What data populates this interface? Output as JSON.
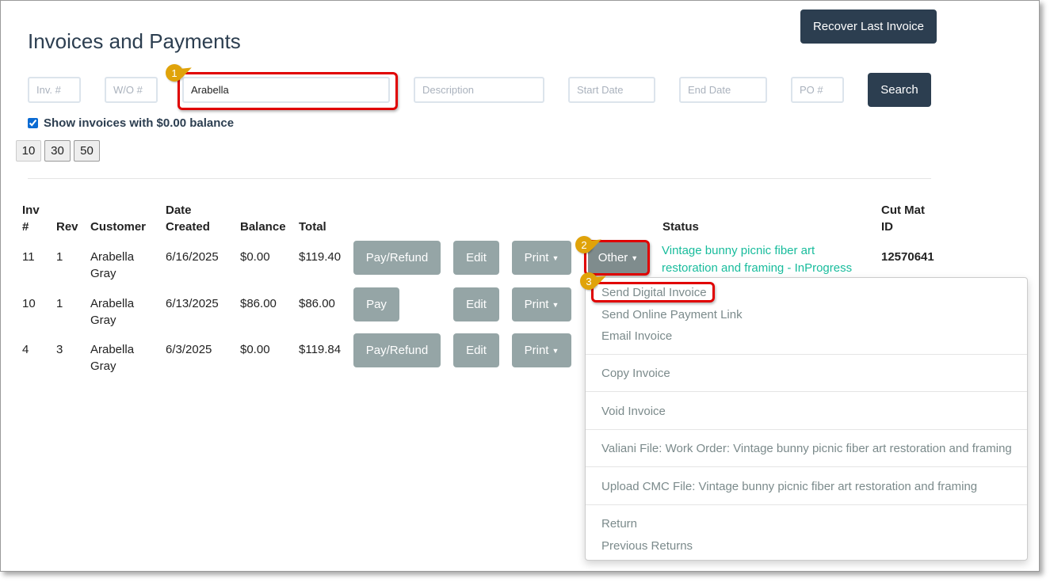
{
  "page": {
    "title": "Invoices and Payments",
    "recover_label": "Recover Last Invoice"
  },
  "filters": {
    "inv_placeholder": "Inv. #",
    "wo_placeholder": "W/O #",
    "customer_value": "Arabella",
    "description_placeholder": "Description",
    "start_placeholder": "Start Date",
    "end_placeholder": "End Date",
    "po_placeholder": "PO #",
    "search_label": "Search",
    "show_zero_label": "Show invoices with $0.00 balance",
    "show_zero_checked": true
  },
  "page_sizes": [
    "10",
    "30",
    "50"
  ],
  "table": {
    "headers": {
      "inv": "Inv #",
      "rev": "Rev",
      "customer": "Customer",
      "date": "Date Created",
      "balance": "Balance",
      "total": "Total",
      "status": "Status",
      "cutmat": "Cut Mat ID"
    },
    "rows": [
      {
        "inv": "11",
        "rev": "1",
        "customer": "Arabella Gray",
        "date": "6/16/2025",
        "balance": "$0.00",
        "total": "$119.40",
        "pay": "Pay/Refund",
        "edit": "Edit",
        "print": "Print",
        "other": "Other",
        "status": "Vintage bunny picnic fiber art restoration and framing - InProgress",
        "cutmat": "12570641"
      },
      {
        "inv": "10",
        "rev": "1",
        "customer": "Arabella Gray",
        "date": "6/13/2025",
        "balance": "$86.00",
        "total": "$86.00",
        "pay": "Pay",
        "edit": "Edit",
        "print": "Print"
      },
      {
        "inv": "4",
        "rev": "3",
        "customer": "Arabella Gray",
        "date": "6/3/2025",
        "balance": "$0.00",
        "total": "$119.84",
        "pay": "Pay/Refund",
        "edit": "Edit",
        "print": "Print"
      }
    ]
  },
  "menu": {
    "items": [
      "Send Digital Invoice",
      "Send Online Payment Link",
      "Email Invoice",
      "Copy Invoice",
      "Void Invoice",
      "Valiani File: Work Order: Vintage bunny picnic fiber art restoration and framing",
      "Upload CMC File: Vintage bunny picnic fiber art restoration and framing",
      "Return",
      "Previous Returns"
    ]
  },
  "callouts": [
    "1",
    "2",
    "3"
  ],
  "colors": {
    "primary": "#2c3e50",
    "button_gray": "#95a5a6",
    "status_green": "#18bc9c",
    "highlight": "#e00000",
    "callout": "#e0a30a"
  }
}
